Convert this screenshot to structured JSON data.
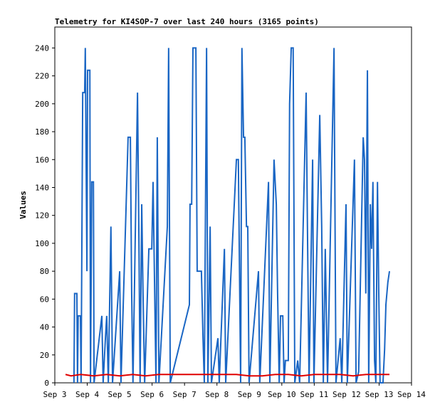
{
  "chart_data": {
    "type": "line",
    "title": "Telemetry for KI4SOP-7 over last 240 hours (3165 points)",
    "y_label": "Values",
    "xlim": [
      3,
      14
    ],
    "ylim": [
      0,
      255
    ],
    "xticks": [
      {
        "value": 3,
        "label": "Sep 3"
      },
      {
        "value": 4,
        "label": "Sep 4"
      },
      {
        "value": 5,
        "label": "Sep 5"
      },
      {
        "value": 6,
        "label": "Sep 6"
      },
      {
        "value": 7,
        "label": "Sep 7"
      },
      {
        "value": 8,
        "label": "Sep 8"
      },
      {
        "value": 9,
        "label": "Sep 9"
      },
      {
        "value": 10,
        "label": "Sep 10"
      },
      {
        "value": 11,
        "label": "Sep 11"
      },
      {
        "value": 12,
        "label": "Sep 12"
      },
      {
        "value": 13,
        "label": "Sep 13"
      },
      {
        "value": 14,
        "label": "Sep 14"
      }
    ],
    "yticks": [
      0,
      20,
      40,
      60,
      80,
      100,
      120,
      140,
      160,
      180,
      200,
      220,
      240
    ],
    "series": [
      {
        "color": "#1a66c4",
        "x": [
          3.59,
          3.61,
          3.68,
          3.7,
          3.72,
          3.79,
          3.81,
          3.86,
          3.92,
          3.94,
          3.99,
          4.01,
          4.08,
          4.1,
          4.14,
          4.19,
          4.21,
          4.45,
          4.49,
          4.56,
          4.6,
          4.65,
          4.69,
          4.73,
          4.78,
          5.0,
          5.04,
          5.26,
          5.33,
          5.37,
          5.41,
          5.55,
          5.59,
          5.63,
          5.68,
          5.72,
          5.77,
          5.9,
          5.99,
          6.03,
          6.07,
          6.12,
          6.16,
          6.21,
          6.47,
          6.51,
          6.56,
          7.15,
          7.17,
          7.22,
          7.26,
          7.35,
          7.39,
          7.52,
          7.57,
          7.61,
          7.68,
          7.72,
          7.79,
          7.83,
          8.03,
          8.07,
          8.23,
          8.27,
          8.6,
          8.66,
          8.73,
          8.77,
          8.82,
          8.86,
          8.91,
          8.95,
          8.99,
          9.28,
          9.32,
          9.59,
          9.63,
          9.76,
          9.83,
          9.87,
          9.92,
          9.96,
          10.03,
          10.07,
          10.11,
          10.2,
          10.24,
          10.29,
          10.35,
          10.4,
          10.49,
          10.55,
          10.75,
          10.79,
          10.84,
          10.95,
          10.99,
          11.17,
          11.23,
          11.28,
          11.34,
          11.41,
          11.61,
          11.67,
          11.8,
          11.85,
          11.98,
          12.02,
          12.24,
          12.29,
          12.37,
          12.51,
          12.55,
          12.59,
          12.64,
          12.68,
          12.73,
          12.77,
          12.81,
          12.86,
          12.9,
          12.95,
          12.99,
          13.03,
          13.12,
          13.17,
          13.21,
          13.27,
          13.32
        ],
        "values": [
          0,
          64,
          64,
          0,
          48,
          48,
          0,
          208,
          208,
          240,
          80,
          224,
          224,
          0,
          144,
          144,
          0,
          48,
          0,
          32,
          48,
          0,
          56,
          112,
          0,
          80,
          0,
          176,
          176,
          64,
          0,
          208,
          112,
          0,
          128,
          64,
          0,
          96,
          96,
          144,
          80,
          0,
          176,
          0,
          112,
          240,
          0,
          56,
          128,
          128,
          240,
          240,
          80,
          80,
          32,
          0,
          240,
          0,
          112,
          0,
          32,
          0,
          96,
          0,
          160,
          160,
          0,
          240,
          176,
          176,
          112,
          112,
          0,
          80,
          0,
          144,
          0,
          160,
          128,
          64,
          0,
          48,
          48,
          0,
          16,
          16,
          200,
          240,
          240,
          0,
          16,
          0,
          208,
          112,
          0,
          160,
          0,
          192,
          112,
          0,
          96,
          0,
          240,
          0,
          32,
          0,
          128,
          0,
          160,
          0,
          8,
          176,
          160,
          64,
          224,
          0,
          128,
          96,
          144,
          16,
          0,
          144,
          64,
          0,
          0,
          24,
          56,
          72,
          80
        ]
      },
      {
        "color": "#e00000",
        "x": [
          3.33,
          3.5,
          3.8,
          4.2,
          4.6,
          5.0,
          5.4,
          5.8,
          6.2,
          6.6,
          7.0,
          7.4,
          7.8,
          8.2,
          8.6,
          9.0,
          9.4,
          9.8,
          10.2,
          10.6,
          11.0,
          11.4,
          11.8,
          12.2,
          12.6,
          13.0,
          13.32
        ],
        "values": [
          6,
          5,
          6,
          5,
          6,
          5,
          6,
          5,
          6,
          6,
          6,
          6,
          6,
          6,
          6,
          5,
          5,
          6,
          6,
          5,
          6,
          6,
          6,
          5,
          6,
          6,
          6
        ]
      }
    ]
  }
}
